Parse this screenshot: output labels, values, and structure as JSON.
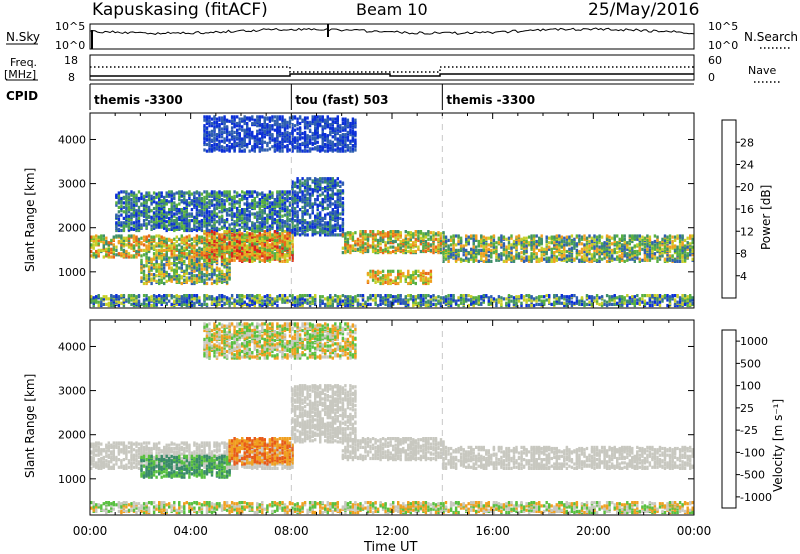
{
  "header": {
    "station": "Kapuskasing (fitACF)",
    "beam": "Beam 10",
    "date": "25/May/2016"
  },
  "left_labels": {
    "nsky": "N.Sky",
    "freq": "Freq.",
    "freq_unit": "[MHz]",
    "cpid": "CPID"
  },
  "right_labels": {
    "nsearch": "N.Search",
    "nave": "Nave"
  },
  "noise_axis": {
    "left_ticks": [
      "10^5",
      "10^0"
    ],
    "right_ticks": [
      "10^5",
      "10^0"
    ]
  },
  "freq_axis": {
    "left_ticks": [
      "18",
      "8"
    ],
    "right_ticks": [
      "60",
      "0"
    ]
  },
  "cpid_segments": [
    {
      "label": "themis -3300",
      "start_hour": 0,
      "end_hour": 8
    },
    {
      "label": "tou (fast) 503",
      "start_hour": 8,
      "end_hour": 14
    },
    {
      "label": "themis -3300",
      "start_hour": 14,
      "end_hour": 24
    }
  ],
  "time_axis": {
    "label": "Time UT",
    "ticks": [
      "00:00",
      "04:00",
      "08:00",
      "12:00",
      "16:00",
      "20:00",
      "00:00"
    ],
    "range_hours": [
      0,
      24
    ]
  },
  "range_axis": {
    "label": "Slant Range [km]",
    "ticks": [
      "1000",
      "2000",
      "3000",
      "4000"
    ],
    "range_km": [
      180,
      4600
    ]
  },
  "power_scale": {
    "title": "Power [dB]",
    "ticks": [
      "4",
      "8",
      "12",
      "16",
      "20",
      "24",
      "28"
    ],
    "colors": [
      "#0b2fd8",
      "#2f5fb0",
      "#3f8f6a",
      "#58b040",
      "#c8d028",
      "#f0a020",
      "#e86818",
      "#d82020"
    ]
  },
  "velocity_scale": {
    "title": "Velocity [m s⁻¹]",
    "ticks": [
      "1000",
      "500",
      "100",
      "25",
      "-25",
      "-100",
      "-500",
      "-1000"
    ],
    "colors": [
      "#1a3aa8",
      "#2b63c4",
      "#3a8a6a",
      "#58c040",
      "#c8c8c0",
      "#f0a020",
      "#e85a18",
      "#e01a1a"
    ]
  },
  "chart_data": [
    {
      "type": "heatmap",
      "name": "power",
      "x_units": "hours UT",
      "y_units": "km",
      "bands": [
        {
          "t0": 0.0,
          "t1": 8.0,
          "r0": 1300,
          "r1": 1800,
          "level": [
            2,
            6
          ]
        },
        {
          "t0": 2.0,
          "t1": 5.5,
          "r0": 700,
          "r1": 1300,
          "level": [
            1,
            5
          ]
        },
        {
          "t0": 4.5,
          "t1": 8.0,
          "r0": 1200,
          "r1": 1900,
          "level": [
            3,
            7
          ]
        },
        {
          "t0": 1.0,
          "t1": 8.0,
          "r0": 1900,
          "r1": 2800,
          "level": [
            0,
            3
          ]
        },
        {
          "t0": 8.0,
          "t1": 10.0,
          "r0": 1800,
          "r1": 3100,
          "level": [
            0,
            2
          ]
        },
        {
          "t0": 10.0,
          "t1": 14.0,
          "r0": 1400,
          "r1": 1900,
          "level": [
            2,
            6
          ]
        },
        {
          "t0": 11.0,
          "t1": 13.5,
          "r0": 700,
          "r1": 1000,
          "level": [
            3,
            6
          ]
        },
        {
          "t0": 14.0,
          "t1": 24.0,
          "r0": 1200,
          "r1": 1800,
          "level": [
            1,
            5
          ]
        },
        {
          "t0": 0.0,
          "t1": 24.0,
          "r0": 200,
          "r1": 450,
          "level": [
            0,
            4
          ]
        },
        {
          "t0": 4.5,
          "t1": 10.5,
          "r0": 3700,
          "r1": 4500,
          "level": [
            0,
            1
          ]
        }
      ]
    },
    {
      "type": "heatmap",
      "name": "velocity",
      "x_units": "hours UT",
      "y_units": "km",
      "bands": [
        {
          "t0": 0.0,
          "t1": 8.0,
          "r0": 1200,
          "r1": 1800,
          "level": [
            4,
            4
          ]
        },
        {
          "t0": 2.0,
          "t1": 5.5,
          "r0": 1000,
          "r1": 1500,
          "level": [
            2,
            3
          ]
        },
        {
          "t0": 5.5,
          "t1": 8.0,
          "r0": 1300,
          "r1": 1900,
          "level": [
            5,
            6
          ]
        },
        {
          "t0": 8.0,
          "t1": 10.5,
          "r0": 1800,
          "r1": 3100,
          "level": [
            4,
            4
          ]
        },
        {
          "t0": 10.0,
          "t1": 14.0,
          "r0": 1400,
          "r1": 1900,
          "level": [
            4,
            4
          ]
        },
        {
          "t0": 14.0,
          "t1": 24.0,
          "r0": 1200,
          "r1": 1700,
          "level": [
            4,
            4
          ]
        },
        {
          "t0": 0.0,
          "t1": 24.0,
          "r0": 200,
          "r1": 450,
          "level": [
            3,
            5
          ]
        },
        {
          "t0": 4.5,
          "t1": 10.5,
          "r0": 3700,
          "r1": 4500,
          "level": [
            3,
            5
          ]
        }
      ]
    }
  ]
}
